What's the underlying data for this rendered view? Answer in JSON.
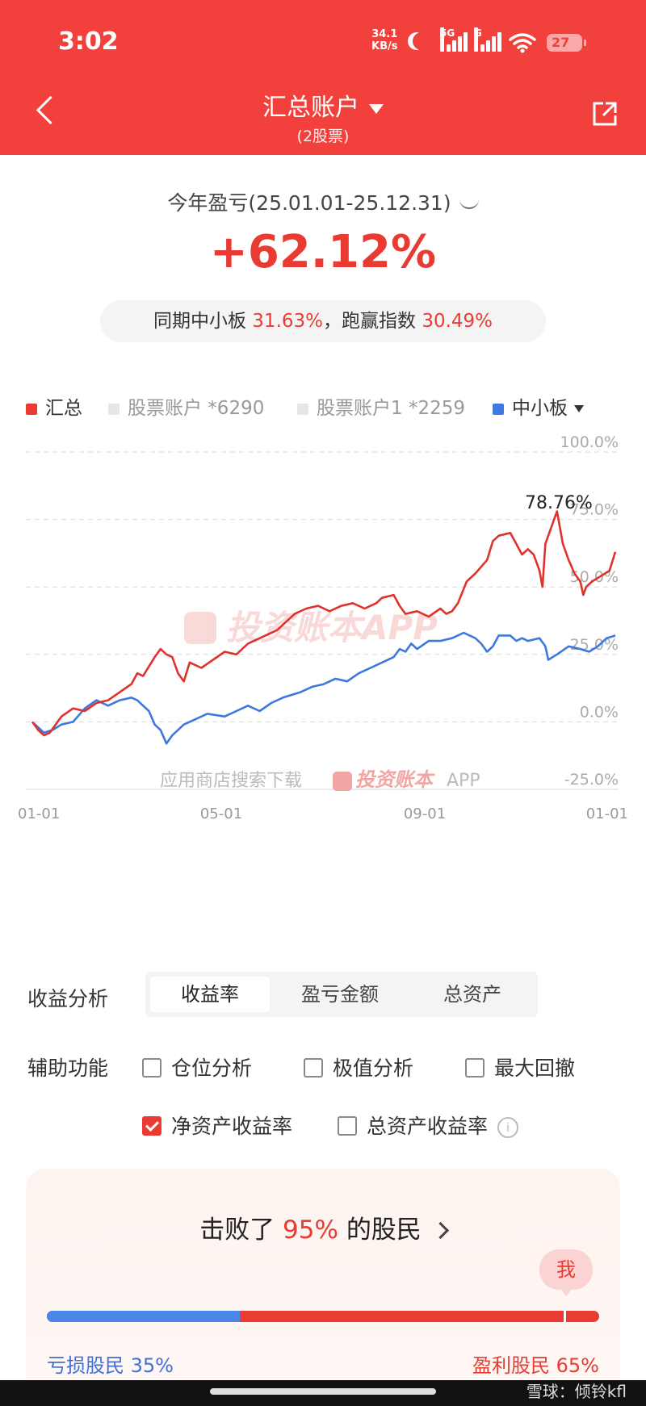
{
  "status_bar": {
    "time": "3:02",
    "net_speed_value": "34.1",
    "net_speed_unit": "KB/s",
    "sim1_label": "5G",
    "sim2_label": "G",
    "battery": "27"
  },
  "header": {
    "title": "汇总账户",
    "subtitle": "(2股票)"
  },
  "summary": {
    "period": "今年盈亏(25.01.01-25.12.31)",
    "profit_pct": "+62.12%",
    "compare_prefix": "同期中小板",
    "compare_board_pct": "31.63%",
    "compare_mid": "，跑赢指数",
    "compare_beat_pct": "30.49%"
  },
  "legend": [
    {
      "label": "汇总",
      "color": "#ea3b33",
      "muted": false
    },
    {
      "label": "股票账户 *6290",
      "color": "#e6e6e6",
      "muted": true
    },
    {
      "label": "股票账户1 *2259",
      "color": "#e6e6e6",
      "muted": true
    },
    {
      "label": "中小板",
      "color": "#3d7be0",
      "muted": false
    }
  ],
  "chart_data": {
    "type": "line",
    "ylabels": [
      "100.0%",
      "75.0%",
      "50.0%",
      "25.0%",
      "0.0%",
      "-25.0%"
    ],
    "ylim": [
      -25,
      100
    ],
    "xlabels": [
      "01-01",
      "05-01",
      "09-01",
      "01-01"
    ],
    "peak_label": "78.76%",
    "watermark_main": "投资账本APP",
    "watermark_bottom_prefix": "应用商店搜索下载",
    "watermark_bottom_brand": "投资账本",
    "watermark_bottom_suffix": "APP",
    "series": [
      {
        "name": "汇总",
        "color": "#e0312c",
        "points": [
          [
            0.0,
            0
          ],
          [
            0.01,
            -3
          ],
          [
            0.02,
            -5
          ],
          [
            0.03,
            -4
          ],
          [
            0.05,
            2
          ],
          [
            0.07,
            5
          ],
          [
            0.09,
            4
          ],
          [
            0.11,
            7
          ],
          [
            0.13,
            8
          ],
          [
            0.15,
            11
          ],
          [
            0.17,
            14
          ],
          [
            0.18,
            18
          ],
          [
            0.19,
            17
          ],
          [
            0.21,
            24
          ],
          [
            0.22,
            27
          ],
          [
            0.23,
            25
          ],
          [
            0.24,
            24
          ],
          [
            0.25,
            18
          ],
          [
            0.26,
            15
          ],
          [
            0.27,
            22
          ],
          [
            0.29,
            20
          ],
          [
            0.31,
            23
          ],
          [
            0.33,
            26
          ],
          [
            0.35,
            25
          ],
          [
            0.37,
            29
          ],
          [
            0.39,
            31
          ],
          [
            0.42,
            34
          ],
          [
            0.45,
            40
          ],
          [
            0.47,
            42
          ],
          [
            0.49,
            43
          ],
          [
            0.51,
            41
          ],
          [
            0.53,
            43
          ],
          [
            0.55,
            44
          ],
          [
            0.57,
            42
          ],
          [
            0.59,
            44
          ],
          [
            0.6,
            46
          ],
          [
            0.62,
            47
          ],
          [
            0.63,
            43
          ],
          [
            0.64,
            40
          ],
          [
            0.66,
            41
          ],
          [
            0.68,
            39
          ],
          [
            0.7,
            42
          ],
          [
            0.71,
            40
          ],
          [
            0.72,
            41
          ],
          [
            0.73,
            44
          ],
          [
            0.745,
            52
          ],
          [
            0.76,
            55
          ],
          [
            0.78,
            60
          ],
          [
            0.79,
            67
          ],
          [
            0.8,
            69
          ],
          [
            0.82,
            70
          ],
          [
            0.83,
            66
          ],
          [
            0.84,
            62
          ],
          [
            0.85,
            64
          ],
          [
            0.86,
            62
          ],
          [
            0.87,
            56
          ],
          [
            0.875,
            50
          ],
          [
            0.88,
            66
          ],
          [
            0.89,
            72
          ],
          [
            0.9,
            78
          ],
          [
            0.905,
            72
          ],
          [
            0.91,
            66
          ],
          [
            0.92,
            60
          ],
          [
            0.93,
            55
          ],
          [
            0.94,
            52
          ],
          [
            0.945,
            47
          ],
          [
            0.95,
            50
          ],
          [
            0.96,
            52
          ],
          [
            0.975,
            54
          ],
          [
            0.99,
            56
          ],
          [
            1.0,
            63
          ]
        ]
      },
      {
        "name": "中小板",
        "color": "#3c78dd",
        "points": [
          [
            0.0,
            0
          ],
          [
            0.01,
            -2
          ],
          [
            0.02,
            -4
          ],
          [
            0.035,
            -3
          ],
          [
            0.05,
            -1
          ],
          [
            0.07,
            0
          ],
          [
            0.09,
            5
          ],
          [
            0.11,
            8
          ],
          [
            0.13,
            6
          ],
          [
            0.15,
            8
          ],
          [
            0.17,
            9
          ],
          [
            0.18,
            8
          ],
          [
            0.2,
            4
          ],
          [
            0.21,
            -1
          ],
          [
            0.22,
            -3
          ],
          [
            0.23,
            -8
          ],
          [
            0.24,
            -5
          ],
          [
            0.26,
            -1
          ],
          [
            0.28,
            1
          ],
          [
            0.3,
            3
          ],
          [
            0.33,
            2
          ],
          [
            0.35,
            4
          ],
          [
            0.37,
            6
          ],
          [
            0.39,
            4
          ],
          [
            0.41,
            7
          ],
          [
            0.43,
            9
          ],
          [
            0.46,
            11
          ],
          [
            0.48,
            13
          ],
          [
            0.5,
            14
          ],
          [
            0.52,
            16
          ],
          [
            0.54,
            15
          ],
          [
            0.56,
            18
          ],
          [
            0.58,
            20
          ],
          [
            0.6,
            22
          ],
          [
            0.62,
            24
          ],
          [
            0.63,
            27
          ],
          [
            0.64,
            26
          ],
          [
            0.65,
            29
          ],
          [
            0.66,
            27
          ],
          [
            0.68,
            30
          ],
          [
            0.7,
            30
          ],
          [
            0.72,
            31
          ],
          [
            0.74,
            33
          ],
          [
            0.76,
            31
          ],
          [
            0.77,
            29
          ],
          [
            0.78,
            26
          ],
          [
            0.79,
            28
          ],
          [
            0.8,
            32
          ],
          [
            0.82,
            32
          ],
          [
            0.83,
            30
          ],
          [
            0.84,
            31
          ],
          [
            0.85,
            30
          ],
          [
            0.87,
            31
          ],
          [
            0.88,
            28
          ],
          [
            0.885,
            23
          ],
          [
            0.9,
            25
          ],
          [
            0.92,
            28
          ],
          [
            0.94,
            27
          ],
          [
            0.955,
            26
          ],
          [
            0.97,
            28
          ],
          [
            0.985,
            31
          ],
          [
            1.0,
            32
          ]
        ]
      }
    ]
  },
  "analysis": {
    "label": "收益分析",
    "tabs": [
      "收益率",
      "盈亏金额",
      "总资产"
    ],
    "active_tab": 0
  },
  "aux": {
    "label": "辅助功能",
    "options": [
      {
        "label": "仓位分析",
        "checked": false
      },
      {
        "label": "极值分析",
        "checked": false
      },
      {
        "label": "最大回撤",
        "checked": false
      },
      {
        "label": "净资产收益率",
        "checked": true
      },
      {
        "label": "总资产收益率",
        "checked": false
      }
    ],
    "info_glyph": "i"
  },
  "rank": {
    "prefix": "击败了",
    "pct": "95%",
    "suffix": "的股民",
    "me": "我",
    "loss_label": "亏损股民 35%",
    "profit_label": "盈利股民 65%",
    "loss_share": 0.35,
    "me_position": 0.95
  },
  "watermark": "雪球：倾铃kfl"
}
